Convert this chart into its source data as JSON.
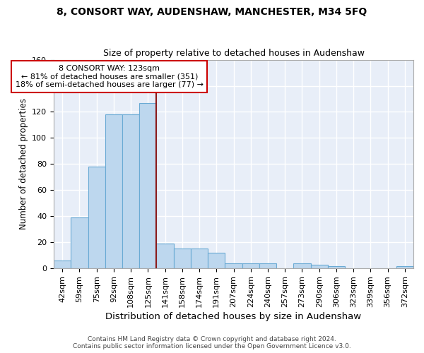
{
  "title": "8, CONSORT WAY, AUDENSHAW, MANCHESTER, M34 5FQ",
  "subtitle": "Size of property relative to detached houses in Audenshaw",
  "xlabel_bottom": "Distribution of detached houses by size in Audenshaw",
  "ylabel": "Number of detached properties",
  "bar_labels": [
    "42sqm",
    "59sqm",
    "75sqm",
    "92sqm",
    "108sqm",
    "125sqm",
    "141sqm",
    "158sqm",
    "174sqm",
    "191sqm",
    "207sqm",
    "224sqm",
    "240sqm",
    "257sqm",
    "273sqm",
    "290sqm",
    "306sqm",
    "323sqm",
    "339sqm",
    "356sqm",
    "372sqm"
  ],
  "bar_values": [
    6,
    39,
    78,
    118,
    118,
    127,
    19,
    15,
    15,
    12,
    4,
    4,
    4,
    0,
    4,
    3,
    2,
    0,
    0,
    0,
    2
  ],
  "bar_color": "#bdd7ee",
  "bar_edgecolor": "#6aaad4",
  "property_label": "8 CONSORT WAY: 123sqm",
  "pct_smaller": 81,
  "count_smaller": 351,
  "pct_larger_semi": 18,
  "count_larger_semi": 77,
  "vline_position": 5.5,
  "vline_color": "#8b1a1a",
  "annotation_box_edgecolor": "#cc0000",
  "ylim": [
    0,
    160
  ],
  "yticks": [
    0,
    20,
    40,
    60,
    80,
    100,
    120,
    140,
    160
  ],
  "bg_color": "#e8eef8",
  "grid_color": "white",
  "title_fontsize": 10,
  "subtitle_fontsize": 9,
  "ylabel_fontsize": 8.5,
  "xlabel_fontsize": 9.5,
  "tick_fontsize": 8,
  "footer_line1": "Contains HM Land Registry data © Crown copyright and database right 2024.",
  "footer_line2": "Contains public sector information licensed under the Open Government Licence v3.0."
}
